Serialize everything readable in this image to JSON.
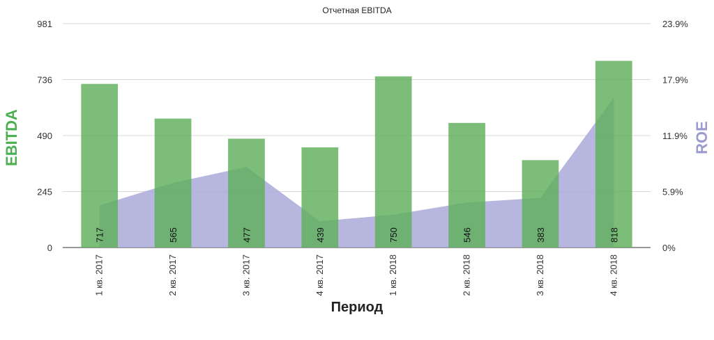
{
  "chart_data": {
    "type": "bar",
    "title": "Отчетная EBITDA",
    "xlabel": "Период",
    "ylabel": "EBITDA",
    "y2label": "ROE",
    "categories": [
      "1 кв. 2017",
      "2 кв. 2017",
      "3 кв. 2017",
      "4 кв. 2017",
      "1 кв. 2018",
      "2 кв. 2018",
      "3 кв. 2018",
      "4 кв. 2018"
    ],
    "series": [
      {
        "type": "bar",
        "axis": "left",
        "values": [
          717,
          565,
          477,
          439,
          750,
          546,
          383,
          818
        ],
        "data_labels": [
          "717",
          "565",
          "477",
          "439",
          "750",
          "546",
          "383",
          "818"
        ],
        "color": "#5fae5c"
      },
      {
        "type": "area",
        "axis": "right",
        "values": [
          4.5,
          6.9,
          8.6,
          2.8,
          3.5,
          4.8,
          5.3,
          16.0
        ],
        "color": "#a9a9d8"
      }
    ],
    "ylim": [
      0,
      981
    ],
    "yticks": [
      "0",
      "245",
      "490",
      "736",
      "981"
    ],
    "y2lim": [
      0,
      23.9
    ],
    "y2ticks": [
      "0%",
      "5.9%",
      "11.9%",
      "17.9%",
      "23.9%"
    ],
    "grid": true,
    "legend": "none",
    "colors": {
      "ylabel": "#4caf50",
      "y2label": "#9b9bcf",
      "grid": "#d9d9d9"
    }
  }
}
